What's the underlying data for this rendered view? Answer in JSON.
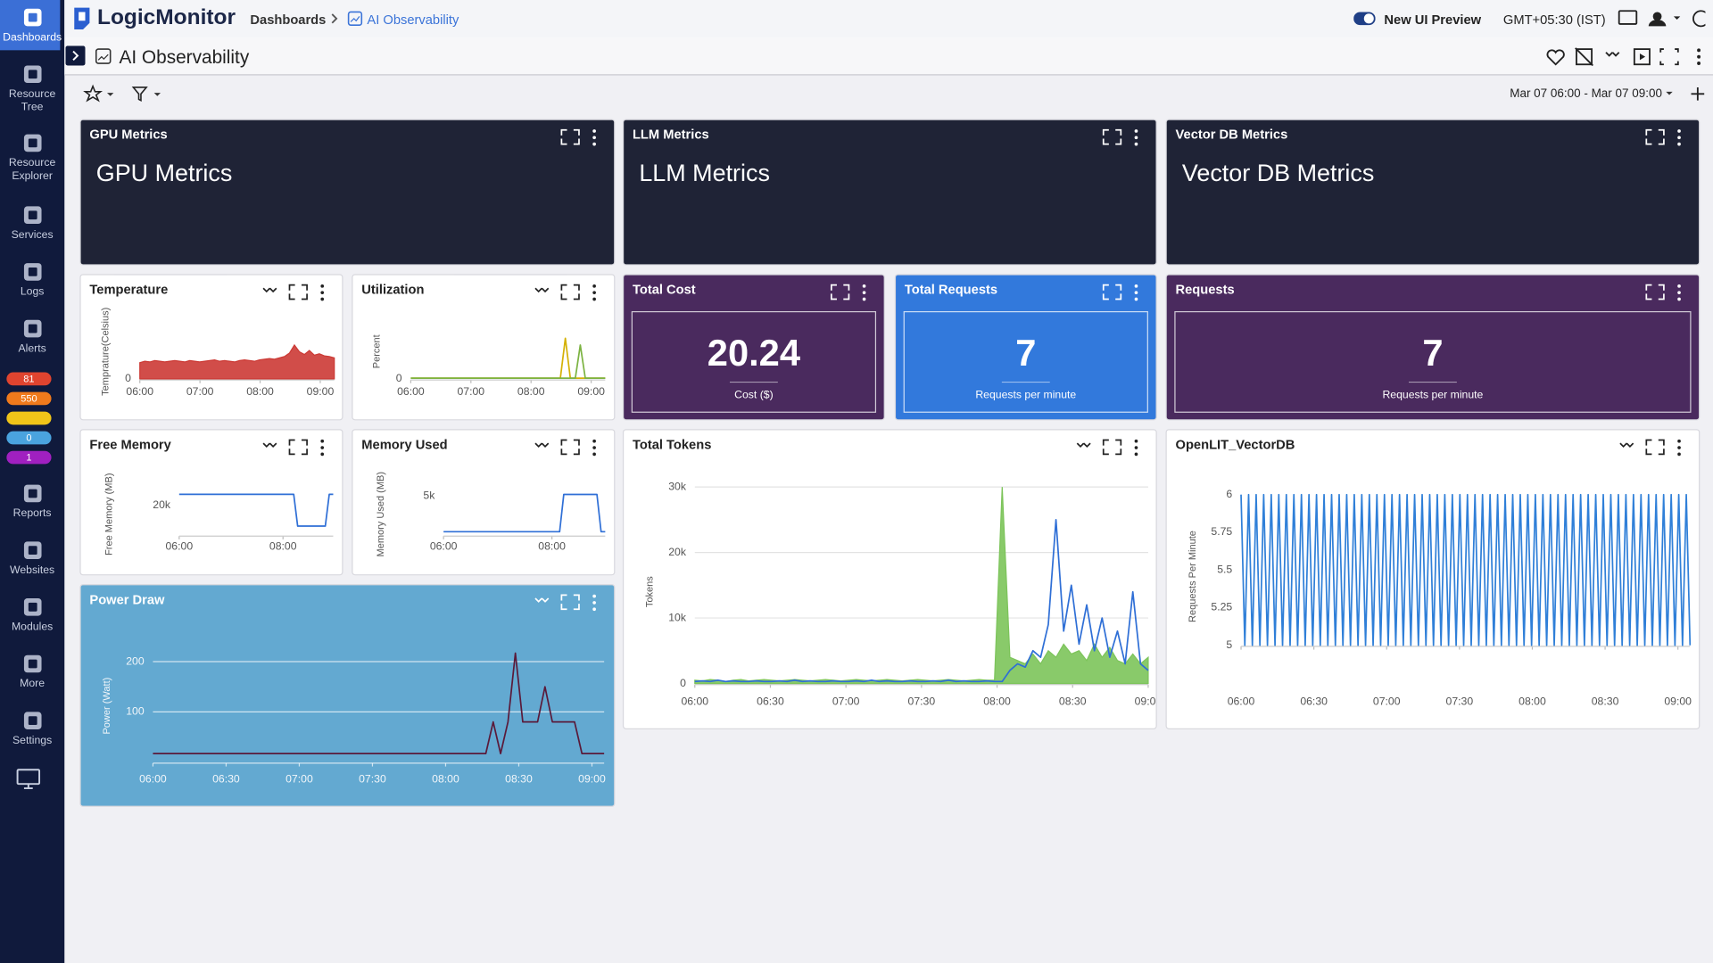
{
  "sidebar": {
    "items": [
      "Dashboards",
      "Resource Tree",
      "Resource Explorer",
      "Services",
      "Logs",
      "Alerts",
      "Reports",
      "Websites",
      "Modules",
      "More",
      "Settings"
    ],
    "badges": [
      81,
      550,
      0,
      1
    ]
  },
  "header": {
    "logo": "LogicMonitor",
    "breadcrumbs": [
      "Dashboards",
      "AI Observability"
    ],
    "preview": "New UI Preview",
    "timezone": "GMT+05:30 (IST)"
  },
  "dashboard": {
    "title": "AI Observability",
    "time_range": "Mar 07 06:00 - Mar 07 09:00"
  },
  "widgets": [
    {
      "title": "GPU Metrics",
      "text": "GPU Metrics",
      "color": "#1f2336"
    },
    {
      "title": "LLM Metrics",
      "text": "LLM Metrics",
      "color": "#1f2336"
    },
    {
      "title": "Vector DB Metrics",
      "text": "Vector DB Metrics",
      "color": "#1f2336"
    },
    {
      "title": "Temperature",
      "color": "#ffffff",
      "chart": {
        "type": "line",
        "ylabel": "Temprature(Celsius)",
        "xlim": [
          0,
          194
        ],
        "xticks": [
          {
            "value": 0,
            "label": "06:00"
          },
          {
            "value": 60,
            "label": "07:00"
          },
          {
            "value": 120,
            "label": "08:00"
          },
          {
            "value": 180,
            "label": "09:00"
          }
        ],
        "ylim": [
          0,
          100
        ],
        "yticks": [
          0
        ],
        "grid": false,
        "series": [
          {
            "color": "#cc3a35",
            "area": true,
            "values": [
              24,
              26,
              25,
              27,
              26,
              25,
              26,
              27,
              26,
              25,
              27,
              26,
              25,
              26,
              27,
              28,
              26,
              27,
              26,
              25,
              27,
              28,
              27,
              26,
              28,
              29,
              30,
              29,
              31,
              33,
              38,
              50,
              40,
              36,
              42,
              35,
              37,
              34,
              33,
              31
            ]
          }
        ]
      }
    },
    {
      "title": "Utilization",
      "color": "#ffffff",
      "chart": {
        "type": "line",
        "ylabel": "Percent",
        "xlim": [
          0,
          194
        ],
        "xticks": [
          {
            "value": 0,
            "label": "06:00"
          },
          {
            "value": 60,
            "label": "07:00"
          },
          {
            "value": 120,
            "label": "08:00"
          },
          {
            "value": 180,
            "label": "09:00"
          }
        ],
        "ylim": [
          0,
          100
        ],
        "yticks": [
          0
        ],
        "grid": false,
        "series": [
          {
            "color": "#d4b106",
            "area": false,
            "values": [
              1,
              1,
              1,
              1,
              1,
              1,
              1,
              1,
              1,
              1,
              1,
              1,
              1,
              1,
              1,
              1,
              1,
              1,
              1,
              1,
              1,
              1,
              1,
              1,
              1,
              1,
              1,
              1,
              1,
              1,
              1,
              60,
              1,
              1,
              1,
              1,
              1,
              1,
              1,
              1
            ]
          },
          {
            "color": "#7cb342",
            "area": false,
            "values": [
              1,
              1,
              1,
              1,
              1,
              1,
              1,
              1,
              1,
              1,
              1,
              1,
              1,
              1,
              1,
              1,
              1,
              1,
              1,
              1,
              1,
              1,
              1,
              1,
              1,
              1,
              1,
              1,
              1,
              1,
              1,
              1,
              1,
              1,
              50,
              1,
              1,
              1,
              1,
              1
            ]
          }
        ]
      }
    },
    {
      "title": "Total Cost",
      "value": 20.24,
      "label": "Cost ($)",
      "color": "#4a2a5e"
    },
    {
      "title": "Total Requests",
      "value": 7,
      "label": "Requests per minute",
      "color": "#3279dc"
    },
    {
      "title": "Requests",
      "value": 7,
      "label": "Requests per minute",
      "color": "#4a2a5e"
    },
    {
      "title": "Free Memory",
      "color": "#ffffff",
      "chart": {
        "type": "line",
        "ylabel": "Free Memory (MB)",
        "xlim": [
          0,
          178
        ],
        "xticks": [
          {
            "value": 0,
            "label": "06:00"
          },
          {
            "value": 120,
            "label": "08:00"
          }
        ],
        "ylim": [
          17000,
          22500
        ],
        "yticks": [
          {
            "value": 20000,
            "label": "20k"
          }
        ],
        "grid": false,
        "series": [
          {
            "color": "#2f6fd6",
            "area": false,
            "values": [
              21100,
              21100,
              21100,
              21100,
              21100,
              21100,
              21100,
              21100,
              21100,
              21100,
              21100,
              21100,
              21100,
              21100,
              21100,
              21100,
              21100,
              21100,
              21100,
              21100,
              21100,
              21100,
              21100,
              21100,
              21100,
              21100,
              21100,
              21100,
              21100,
              21100,
              17900,
              17900,
              17900,
              17900,
              17900,
              17900,
              17900,
              17900,
              21100,
              21100
            ]
          }
        ]
      }
    },
    {
      "title": "Memory Used",
      "color": "#ffffff",
      "chart": {
        "type": "line",
        "ylabel": "Memory Used (MB)",
        "xlim": [
          0,
          179
        ],
        "xticks": [
          {
            "value": 0,
            "label": "06:00"
          },
          {
            "value": 120,
            "label": "08:00"
          }
        ],
        "ylim": [
          0,
          7000
        ],
        "yticks": [
          {
            "value": 5000,
            "label": "5k"
          }
        ],
        "grid": false,
        "series": [
          {
            "color": "#2f6fd6",
            "area": false,
            "values": [
              420,
              420,
              420,
              420,
              420,
              420,
              420,
              420,
              420,
              420,
              420,
              420,
              420,
              420,
              420,
              420,
              420,
              420,
              420,
              420,
              420,
              420,
              420,
              420,
              420,
              420,
              420,
              420,
              420,
              5200,
              5200,
              5200,
              5200,
              5200,
              5200,
              5200,
              5200,
              5200,
              420,
              420
            ]
          }
        ]
      }
    },
    {
      "title": "Total Tokens",
      "color": "#ffffff",
      "chart": {
        "type": "line",
        "ylabel": "Tokens",
        "xlim": [
          0,
          180
        ],
        "xticks": [
          {
            "value": 0,
            "label": "06:00"
          },
          {
            "value": 30,
            "label": "06:30"
          },
          {
            "value": 60,
            "label": "07:00"
          },
          {
            "value": 90,
            "label": "07:30"
          },
          {
            "value": 120,
            "label": "08:00"
          },
          {
            "value": 150,
            "label": "08:30"
          },
          {
            "value": 180,
            "label": "09:00"
          }
        ],
        "ylim": [
          0,
          30000
        ],
        "yticks": [
          0,
          {
            "value": 10000,
            "label": "10k"
          },
          {
            "value": 20000,
            "label": "20k"
          },
          {
            "value": 30000,
            "label": "30k"
          }
        ],
        "grid": true,
        "series": [
          {
            "color": "#7cc45a",
            "area": true,
            "values": [
              500,
              400,
              600,
              500,
              300,
              500,
              600,
              400,
              500,
              600,
              500,
              400,
              500,
              600,
              500,
              400,
              500,
              600,
              500,
              400,
              500,
              600,
              500,
              400,
              500,
              600,
              500,
              400,
              500,
              600,
              500,
              400,
              500,
              600,
              500,
              400,
              500,
              600,
              500,
              500,
              30000,
              4000,
              3500,
              3000,
              4500,
              3000,
              5000,
              4000,
              6000,
              4500,
              5000,
              3500,
              6000,
              4000,
              5500,
              3500,
              3000,
              4500,
              3000,
              4000
            ]
          },
          {
            "color": "#2f6fd6",
            "area": false,
            "values": [
              300,
              400,
              300,
              500,
              300,
              400,
              300,
              300,
              400,
              300,
              300,
              400,
              300,
              500,
              300,
              400,
              300,
              300,
              400,
              300,
              300,
              400,
              300,
              500,
              300,
              400,
              300,
              300,
              400,
              300,
              300,
              400,
              300,
              500,
              300,
              400,
              300,
              300,
              400,
              300,
              300,
              2000,
              3000,
              2500,
              5000,
              4000,
              9000,
              25000,
              8000,
              15000,
              6000,
              12000,
              5000,
              10000,
              4000,
              8000,
              3000,
              14000,
              3000,
              2000
            ]
          }
        ]
      }
    },
    {
      "title": "OpenLIT_VectorDB",
      "color": "#ffffff",
      "chart": {
        "type": "line",
        "ylabel": "Requests Per Minute",
        "xlim": [
          0,
          185
        ],
        "xticks": [
          {
            "value": 0,
            "label": "06:00"
          },
          {
            "value": 30,
            "label": "06:30"
          },
          {
            "value": 60,
            "label": "07:00"
          },
          {
            "value": 90,
            "label": "07:30"
          },
          {
            "value": 120,
            "label": "08:00"
          },
          {
            "value": 150,
            "label": "08:30"
          },
          {
            "value": 180,
            "label": "09:00"
          }
        ],
        "ylim": [
          5,
          6
        ],
        "yticks": [
          5,
          5.25,
          5.5,
          5.75,
          6
        ],
        "grid": false,
        "series": [
          {
            "color": "#2f7fd8",
            "area": false,
            "values": [
              6,
              5,
              6,
              5,
              6,
              5,
              6,
              5,
              6,
              5,
              6,
              5,
              6,
              5,
              6,
              5,
              6,
              5,
              6,
              5,
              6,
              5,
              6,
              5,
              6,
              5,
              6,
              5,
              6,
              5,
              6,
              5,
              6,
              5,
              6,
              5,
              6,
              5,
              6,
              5,
              6,
              5,
              6,
              5,
              6,
              5,
              6,
              5,
              6,
              5,
              6,
              5,
              6,
              5,
              6,
              5,
              6,
              5,
              6,
              5,
              6,
              5,
              6,
              5,
              6,
              5,
              6,
              5,
              6,
              5,
              6,
              5,
              6,
              5,
              6,
              5,
              6,
              5,
              6,
              5,
              6,
              5,
              6,
              5,
              6,
              5,
              6,
              5,
              6,
              5,
              6,
              5,
              6,
              5,
              6,
              5,
              6,
              5,
              6,
              5,
              6,
              5,
              6,
              5,
              6,
              5,
              6,
              5,
              6,
              5,
              6,
              5,
              6,
              5,
              6,
              5,
              6,
              5,
              6,
              5
            ]
          }
        ]
      }
    },
    {
      "title": "Power Draw",
      "color": "#63a9d1",
      "chart": {
        "type": "line",
        "ylabel": "Power (Watt)",
        "xlim": [
          0,
          185
        ],
        "xticks": [
          {
            "value": 0,
            "label": "06:00"
          },
          {
            "value": 30,
            "label": "06:30"
          },
          {
            "value": 60,
            "label": "07:00"
          },
          {
            "value": 90,
            "label": "07:30"
          },
          {
            "value": 120,
            "label": "08:00"
          },
          {
            "value": 150,
            "label": "08:30"
          },
          {
            "value": 180,
            "label": "09:00"
          }
        ],
        "ylim": [
          0,
          250
        ],
        "yticks": [
          100,
          200
        ],
        "grid": true,
        "series": [
          {
            "color": "#5a1a3a",
            "area": false,
            "values": [
              17,
              17,
              17,
              17,
              17,
              17,
              17,
              17,
              17,
              17,
              17,
              17,
              17,
              17,
              17,
              17,
              17,
              17,
              17,
              17,
              17,
              17,
              17,
              17,
              17,
              17,
              17,
              17,
              17,
              17,
              17,
              17,
              17,
              17,
              17,
              17,
              17,
              17,
              17,
              17,
              17,
              17,
              17,
              17,
              17,
              17,
              80,
              17,
              80,
              217,
              80,
              80,
              80,
              150,
              80,
              80,
              80,
              80,
              17,
              17,
              17,
              17
            ]
          }
        ]
      }
    }
  ]
}
